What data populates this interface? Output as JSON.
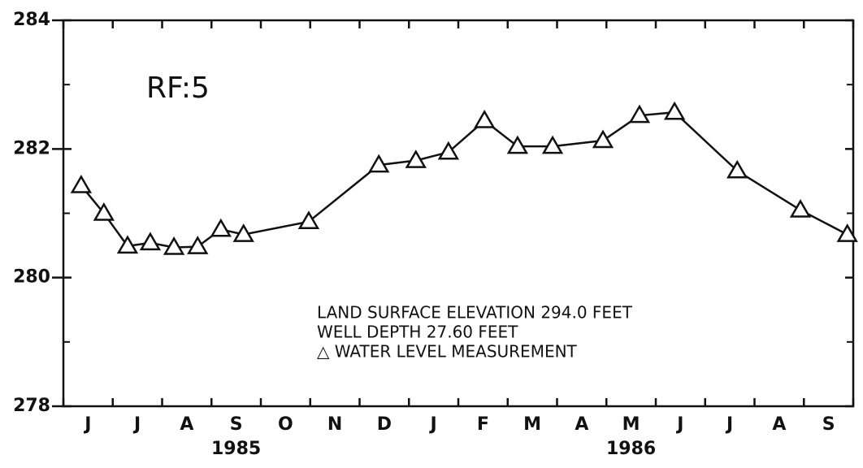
{
  "chart_data": {
    "type": "line",
    "annotations": [
      "RF:5",
      "LAND SURFACE ELEVATION 294.0 FEET",
      "WELL DEPTH 27.60 FEET",
      "△ WATER LEVEL MEASUREMENT"
    ],
    "categories": [
      "J",
      "J",
      "A",
      "S",
      "O",
      "N",
      "D",
      "J",
      "F",
      "M",
      "A",
      "M",
      "J",
      "J",
      "A",
      "S"
    ],
    "year_labels": [
      {
        "value": 3.5,
        "label": "1985"
      },
      {
        "value": 11.5,
        "label": "1986"
      }
    ],
    "xlim": [
      0,
      16
    ],
    "xticks": [
      0,
      1,
      2,
      3,
      4,
      5,
      6,
      7,
      8,
      9,
      10,
      11,
      12,
      13,
      14,
      15,
      16
    ],
    "ylim": [
      278,
      284
    ],
    "yticks": [
      278,
      280,
      282,
      284
    ],
    "yminor_ticks": [
      279,
      281,
      283
    ],
    "series": [
      {
        "color": "#111111",
        "x": [
          0.36,
          0.82,
          1.3,
          1.76,
          2.24,
          2.72,
          3.19,
          3.65,
          4.97,
          6.39,
          7.14,
          7.8,
          8.53,
          9.2,
          9.91,
          10.93,
          11.67,
          12.38,
          13.65,
          14.93,
          15.88
        ],
        "values": [
          281.43,
          281.0,
          280.49,
          280.54,
          280.47,
          280.48,
          280.75,
          280.67,
          280.87,
          281.75,
          281.82,
          281.95,
          282.44,
          282.04,
          282.04,
          282.13,
          282.52,
          282.57,
          281.66,
          281.05,
          280.67
        ]
      }
    ]
  }
}
